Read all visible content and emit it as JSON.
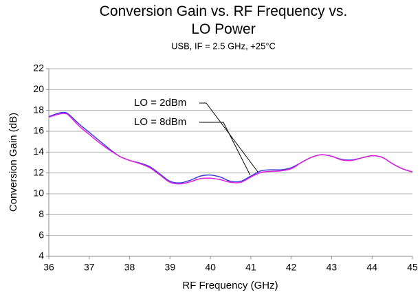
{
  "chart_data": {
    "type": "line",
    "title": "Conversion Gain vs. RF Frequency vs. LO Power",
    "subtitle": "USB, IF = 2.5 GHz, +25°C",
    "x_label": "RF Frequency (GHz)",
    "y_label": "Conversion Gain (dB)",
    "x": [
      36,
      36.25,
      36.4,
      36.5,
      36.75,
      37,
      37.25,
      37.5,
      37.75,
      38,
      38.25,
      38.5,
      38.75,
      39,
      39.25,
      39.5,
      39.75,
      40,
      40.25,
      40.5,
      40.75,
      41,
      41.25,
      41.5,
      41.75,
      42,
      42.25,
      42.5,
      42.75,
      43,
      43.25,
      43.5,
      43.75,
      44,
      44.25,
      44.5,
      44.75,
      45
    ],
    "series": [
      {
        "name": "LO = 2dBm",
        "color": "#3c3ce0",
        "values": [
          17.4,
          17.75,
          17.8,
          17.6,
          16.7,
          15.9,
          15.1,
          14.3,
          13.6,
          13.2,
          12.95,
          12.6,
          11.9,
          11.2,
          11.05,
          11.3,
          11.7,
          11.8,
          11.6,
          11.2,
          11.2,
          11.7,
          12.2,
          12.3,
          12.3,
          12.5,
          13.0,
          13.5,
          13.75,
          13.6,
          13.3,
          13.25,
          13.45,
          13.65,
          13.5,
          12.9,
          12.4,
          12.1
        ]
      },
      {
        "name": "LO = 8dBm",
        "color": "#e020e0",
        "values": [
          17.35,
          17.65,
          17.7,
          17.5,
          16.5,
          15.7,
          14.9,
          14.2,
          13.6,
          13.2,
          12.9,
          12.5,
          11.8,
          11.1,
          10.95,
          11.15,
          11.45,
          11.5,
          11.35,
          11.1,
          11.1,
          11.6,
          12.05,
          12.15,
          12.2,
          12.4,
          13.0,
          13.5,
          13.75,
          13.6,
          13.25,
          13.2,
          13.45,
          13.65,
          13.5,
          12.9,
          12.4,
          12.1
        ]
      }
    ],
    "xlim": [
      36,
      45
    ],
    "xticks": [
      36,
      37,
      38,
      39,
      40,
      41,
      42,
      43,
      44,
      45
    ],
    "ylim": [
      4,
      22
    ],
    "yticks": [
      4,
      6,
      8,
      10,
      12,
      14,
      16,
      18,
      20,
      22
    ],
    "grid": true
  }
}
